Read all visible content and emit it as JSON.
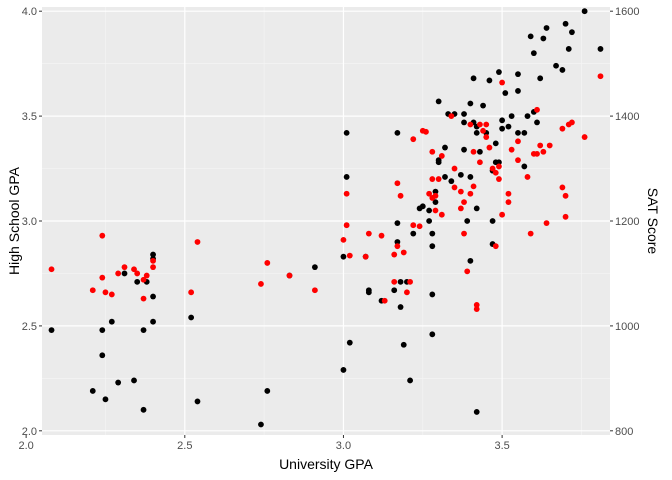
{
  "chart_data": {
    "type": "scatter",
    "title": "",
    "xlabel": "University GPA",
    "ylabel": "High School GPA",
    "y2label": "SAT Score",
    "xlim": [
      2.05,
      3.84
    ],
    "ylim": [
      1.98,
      4.02
    ],
    "y2lim": [
      792,
      1608
    ],
    "x_ticks": [
      2.0,
      2.5,
      3.0,
      3.5
    ],
    "x_tick_labels": [
      "2.0",
      "2.5",
      "3.0",
      "3.5"
    ],
    "y_ticks": [
      2.0,
      2.5,
      3.0,
      3.5,
      4.0
    ],
    "y_tick_labels": [
      "2.0",
      "2.5",
      "3.0",
      "3.5",
      "4.0"
    ],
    "y2_ticks": [
      800,
      1000,
      1200,
      1400,
      1600
    ],
    "y2_tick_labels": [
      "800",
      "1000",
      "1200",
      "1400",
      "1600"
    ],
    "grid": true,
    "colors": {
      "panel_background": "#ebebeb",
      "grid_major": "#ffffff",
      "grid_minor": "#f5f5f5",
      "high_school_points": "#000000",
      "sat_points": "#ff0000",
      "y2_title": "#ff0000"
    },
    "series": [
      {
        "axis": "left",
        "color": "#000000",
        "points": [
          [
            2.08,
            2.48
          ],
          [
            2.21,
            2.19
          ],
          [
            2.24,
            2.36
          ],
          [
            2.24,
            2.48
          ],
          [
            2.25,
            2.15
          ],
          [
            2.27,
            2.52
          ],
          [
            2.29,
            2.23
          ],
          [
            2.31,
            2.75
          ],
          [
            2.34,
            2.24
          ],
          [
            2.35,
            2.71
          ],
          [
            2.37,
            2.48
          ],
          [
            2.37,
            2.1
          ],
          [
            2.38,
            2.71
          ],
          [
            2.4,
            2.64
          ],
          [
            2.4,
            2.52
          ],
          [
            2.4,
            2.82
          ],
          [
            2.4,
            2.84
          ],
          [
            2.52,
            2.54
          ],
          [
            2.54,
            2.14
          ],
          [
            2.74,
            2.03
          ],
          [
            2.76,
            2.19
          ],
          [
            2.83,
            2.74
          ],
          [
            2.91,
            2.78
          ],
          [
            3.0,
            2.29
          ],
          [
            3.0,
            2.83
          ],
          [
            3.01,
            3.21
          ],
          [
            3.01,
            3.42
          ],
          [
            3.02,
            2.42
          ],
          [
            3.07,
            2.83
          ],
          [
            3.08,
            2.66
          ],
          [
            3.08,
            2.67
          ],
          [
            3.12,
            2.62
          ],
          [
            3.16,
            2.67
          ],
          [
            3.17,
            2.9
          ],
          [
            3.17,
            2.99
          ],
          [
            3.17,
            3.42
          ],
          [
            3.18,
            2.71
          ],
          [
            3.18,
            2.59
          ],
          [
            3.19,
            2.41
          ],
          [
            3.2,
            2.71
          ],
          [
            3.21,
            2.24
          ],
          [
            3.22,
            2.94
          ],
          [
            3.24,
            3.06
          ],
          [
            3.25,
            3.07
          ],
          [
            3.27,
            3.0
          ],
          [
            3.28,
            2.65
          ],
          [
            3.28,
            2.46
          ],
          [
            3.28,
            2.88
          ],
          [
            3.28,
            2.94
          ],
          [
            3.29,
            3.14
          ],
          [
            3.29,
            3.09
          ],
          [
            3.3,
            3.28
          ],
          [
            3.3,
            3.29
          ],
          [
            3.3,
            3.57
          ],
          [
            3.32,
            3.21
          ],
          [
            3.33,
            3.51
          ],
          [
            3.35,
            3.51
          ],
          [
            3.37,
            3.22
          ],
          [
            3.38,
            3.34
          ],
          [
            3.38,
            3.47
          ],
          [
            3.38,
            3.51
          ],
          [
            3.39,
            3.0
          ],
          [
            3.4,
            2.81
          ],
          [
            3.4,
            3.21
          ],
          [
            3.4,
            3.56
          ],
          [
            3.41,
            3.47
          ],
          [
            3.41,
            3.68
          ],
          [
            3.42,
            3.45
          ],
          [
            3.42,
            3.42
          ],
          [
            3.42,
            3.06
          ],
          [
            3.42,
            2.09
          ],
          [
            3.43,
            3.33
          ],
          [
            3.45,
            3.42
          ],
          [
            3.46,
            3.67
          ],
          [
            3.47,
            2.89
          ],
          [
            3.47,
            3.24
          ],
          [
            3.47,
            3.0
          ],
          [
            3.48,
            3.28
          ],
          [
            3.49,
            3.28
          ],
          [
            3.49,
            3.71
          ],
          [
            3.5,
            3.44
          ],
          [
            3.5,
            3.48
          ],
          [
            3.51,
            3.61
          ],
          [
            3.52,
            3.45
          ],
          [
            3.53,
            3.5
          ],
          [
            3.55,
            3.42
          ],
          [
            3.55,
            3.7
          ],
          [
            3.57,
            3.26
          ],
          [
            3.57,
            3.42
          ],
          [
            3.58,
            3.5
          ],
          [
            3.59,
            3.88
          ],
          [
            3.6,
            3.8
          ],
          [
            3.6,
            3.52
          ],
          [
            3.61,
            3.47
          ],
          [
            3.62,
            3.68
          ],
          [
            3.63,
            3.87
          ],
          [
            3.64,
            3.92
          ],
          [
            3.67,
            3.74
          ],
          [
            3.69,
            3.72
          ],
          [
            3.7,
            3.94
          ],
          [
            3.71,
            3.82
          ],
          [
            3.72,
            3.9
          ],
          [
            3.76,
            4.0
          ],
          [
            3.81,
            3.82
          ],
          [
            3.32,
            3.35
          ],
          [
            3.44,
            3.55
          ],
          [
            3.55,
            3.62
          ],
          [
            3.27,
            3.05
          ],
          [
            3.34,
            3.19
          ],
          [
            3.48,
            3.37
          ]
        ]
      },
      {
        "axis": "right",
        "color": "#ff0000",
        "points": [
          [
            2.08,
            1108
          ],
          [
            2.21,
            1068
          ],
          [
            2.24,
            1092
          ],
          [
            2.24,
            1172
          ],
          [
            2.25,
            1064
          ],
          [
            2.27,
            1060
          ],
          [
            2.29,
            1100
          ],
          [
            2.31,
            1112
          ],
          [
            2.34,
            1108
          ],
          [
            2.35,
            1100
          ],
          [
            2.37,
            1052
          ],
          [
            2.37,
            1088
          ],
          [
            2.38,
            1096
          ],
          [
            2.4,
            1112
          ],
          [
            2.4,
            1124
          ],
          [
            2.54,
            1160
          ],
          [
            2.52,
            1064
          ],
          [
            2.74,
            1080
          ],
          [
            2.76,
            1120
          ],
          [
            2.83,
            1096
          ],
          [
            2.91,
            1068
          ],
          [
            3.0,
            1164
          ],
          [
            3.01,
            1192
          ],
          [
            3.01,
            1252
          ],
          [
            3.02,
            1134
          ],
          [
            3.07,
            1132
          ],
          [
            3.08,
            1176
          ],
          [
            3.12,
            1172
          ],
          [
            3.13,
            1048
          ],
          [
            3.16,
            1136
          ],
          [
            3.16,
            1084
          ],
          [
            3.17,
            1152
          ],
          [
            3.17,
            1272
          ],
          [
            3.18,
            1248
          ],
          [
            3.19,
            1140
          ],
          [
            3.2,
            1064
          ],
          [
            3.21,
            1084
          ],
          [
            3.22,
            1192
          ],
          [
            3.24,
            1190
          ],
          [
            3.25,
            1372
          ],
          [
            3.26,
            1370
          ],
          [
            3.27,
            1252
          ],
          [
            3.28,
            1244
          ],
          [
            3.28,
            1332
          ],
          [
            3.29,
            1248
          ],
          [
            3.29,
            1220
          ],
          [
            3.3,
            1280
          ],
          [
            3.31,
            1212
          ],
          [
            3.31,
            1324
          ],
          [
            3.34,
            1400
          ],
          [
            3.35,
            1264
          ],
          [
            3.37,
            1256
          ],
          [
            3.37,
            1224
          ],
          [
            3.38,
            1176
          ],
          [
            3.38,
            1236
          ],
          [
            3.39,
            1104
          ],
          [
            3.4,
            1384
          ],
          [
            3.4,
            1252
          ],
          [
            3.41,
            1266
          ],
          [
            3.42,
            1040
          ],
          [
            3.42,
            1032
          ],
          [
            3.43,
            1312
          ],
          [
            3.43,
            1384
          ],
          [
            3.44,
            1372
          ],
          [
            3.45,
            1360
          ],
          [
            3.45,
            1384
          ],
          [
            3.46,
            1340
          ],
          [
            3.47,
            1300
          ],
          [
            3.48,
            1292
          ],
          [
            3.48,
            1152
          ],
          [
            3.49,
            1304
          ],
          [
            3.49,
            1280
          ],
          [
            3.5,
            1212
          ],
          [
            3.5,
            1464
          ],
          [
            3.52,
            1236
          ],
          [
            3.52,
            1252
          ],
          [
            3.53,
            1336
          ],
          [
            3.55,
            1352
          ],
          [
            3.55,
            1316
          ],
          [
            3.58,
            1284
          ],
          [
            3.59,
            1176
          ],
          [
            3.6,
            1328
          ],
          [
            3.61,
            1328
          ],
          [
            3.61,
            1412
          ],
          [
            3.62,
            1344
          ],
          [
            3.63,
            1332
          ],
          [
            3.64,
            1196
          ],
          [
            3.65,
            1344
          ],
          [
            3.69,
            1264
          ],
          [
            3.69,
            1376
          ],
          [
            3.7,
            1248
          ],
          [
            3.7,
            1208
          ],
          [
            3.71,
            1384
          ],
          [
            3.72,
            1388
          ],
          [
            3.76,
            1360
          ],
          [
            3.81,
            1476
          ],
          [
            3.41,
            1332
          ],
          [
            3.35,
            1300
          ],
          [
            3.28,
            1280
          ],
          [
            3.22,
            1356
          ]
        ]
      }
    ]
  }
}
